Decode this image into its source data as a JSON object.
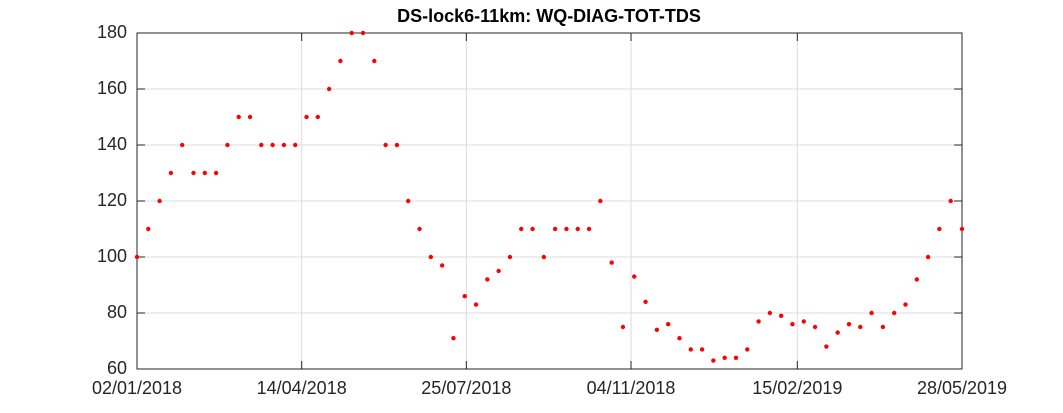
{
  "chart_data": {
    "type": "scatter",
    "title": "DS-lock6-11km: WQ-DIAG-TOT-TDS",
    "x": [
      "2018-01-02",
      "2018-01-09",
      "2018-01-16",
      "2018-01-23",
      "2018-01-30",
      "2018-02-06",
      "2018-02-13",
      "2018-02-20",
      "2018-02-27",
      "2018-03-06",
      "2018-03-13",
      "2018-03-20",
      "2018-03-27",
      "2018-04-03",
      "2018-04-10",
      "2018-04-17",
      "2018-04-24",
      "2018-05-01",
      "2018-05-08",
      "2018-05-15",
      "2018-05-22",
      "2018-05-29",
      "2018-06-05",
      "2018-06-12",
      "2018-06-19",
      "2018-06-26",
      "2018-07-03",
      "2018-07-10",
      "2018-07-17",
      "2018-07-24",
      "2018-07-31",
      "2018-08-07",
      "2018-08-14",
      "2018-08-21",
      "2018-08-28",
      "2018-09-04",
      "2018-09-11",
      "2018-09-18",
      "2018-09-25",
      "2018-10-02",
      "2018-10-09",
      "2018-10-16",
      "2018-10-23",
      "2018-10-30",
      "2018-11-06",
      "2018-11-13",
      "2018-11-20",
      "2018-11-27",
      "2018-12-04",
      "2018-12-11",
      "2018-12-18",
      "2018-12-25",
      "2019-01-01",
      "2019-01-08",
      "2019-01-15",
      "2019-01-22",
      "2019-01-29",
      "2019-02-05",
      "2019-02-12",
      "2019-02-19",
      "2019-02-26",
      "2019-03-05",
      "2019-03-12",
      "2019-03-19",
      "2019-03-26",
      "2019-04-02",
      "2019-04-09",
      "2019-04-16",
      "2019-04-23",
      "2019-04-30",
      "2019-05-07",
      "2019-05-14",
      "2019-05-21",
      "2019-05-28"
    ],
    "values": [
      100,
      110,
      120,
      130,
      140,
      130,
      130,
      130,
      140,
      150,
      150,
      140,
      140,
      140,
      140,
      150,
      150,
      160,
      170,
      180,
      180,
      170,
      140,
      140,
      120,
      110,
      100,
      97,
      71,
      86,
      83,
      92,
      95,
      100,
      110,
      110,
      100,
      110,
      110,
      110,
      110,
      120,
      98,
      75,
      93,
      84,
      74,
      76,
      71,
      67,
      67,
      63,
      64,
      64,
      67,
      77,
      80,
      79,
      76,
      77,
      75,
      68,
      73,
      76,
      75,
      80,
      75,
      80,
      83,
      92,
      100,
      110,
      120,
      110
    ],
    "color": "#ff0000",
    "xlim": [
      "2018-01-02",
      "2019-05-28"
    ],
    "xticks": [
      {
        "value": "2018-01-02",
        "label": "02/01/2018"
      },
      {
        "value": "2018-04-14",
        "label": "14/04/2018"
      },
      {
        "value": "2018-07-25",
        "label": "25/07/2018"
      },
      {
        "value": "2018-11-04",
        "label": "04/11/2018"
      },
      {
        "value": "2019-02-15",
        "label": "15/02/2019"
      },
      {
        "value": "2019-05-28",
        "label": "28/05/2019"
      }
    ],
    "ylim": [
      60,
      180
    ],
    "yticks": [
      60,
      80,
      100,
      120,
      140,
      160,
      180
    ],
    "grid": true
  }
}
